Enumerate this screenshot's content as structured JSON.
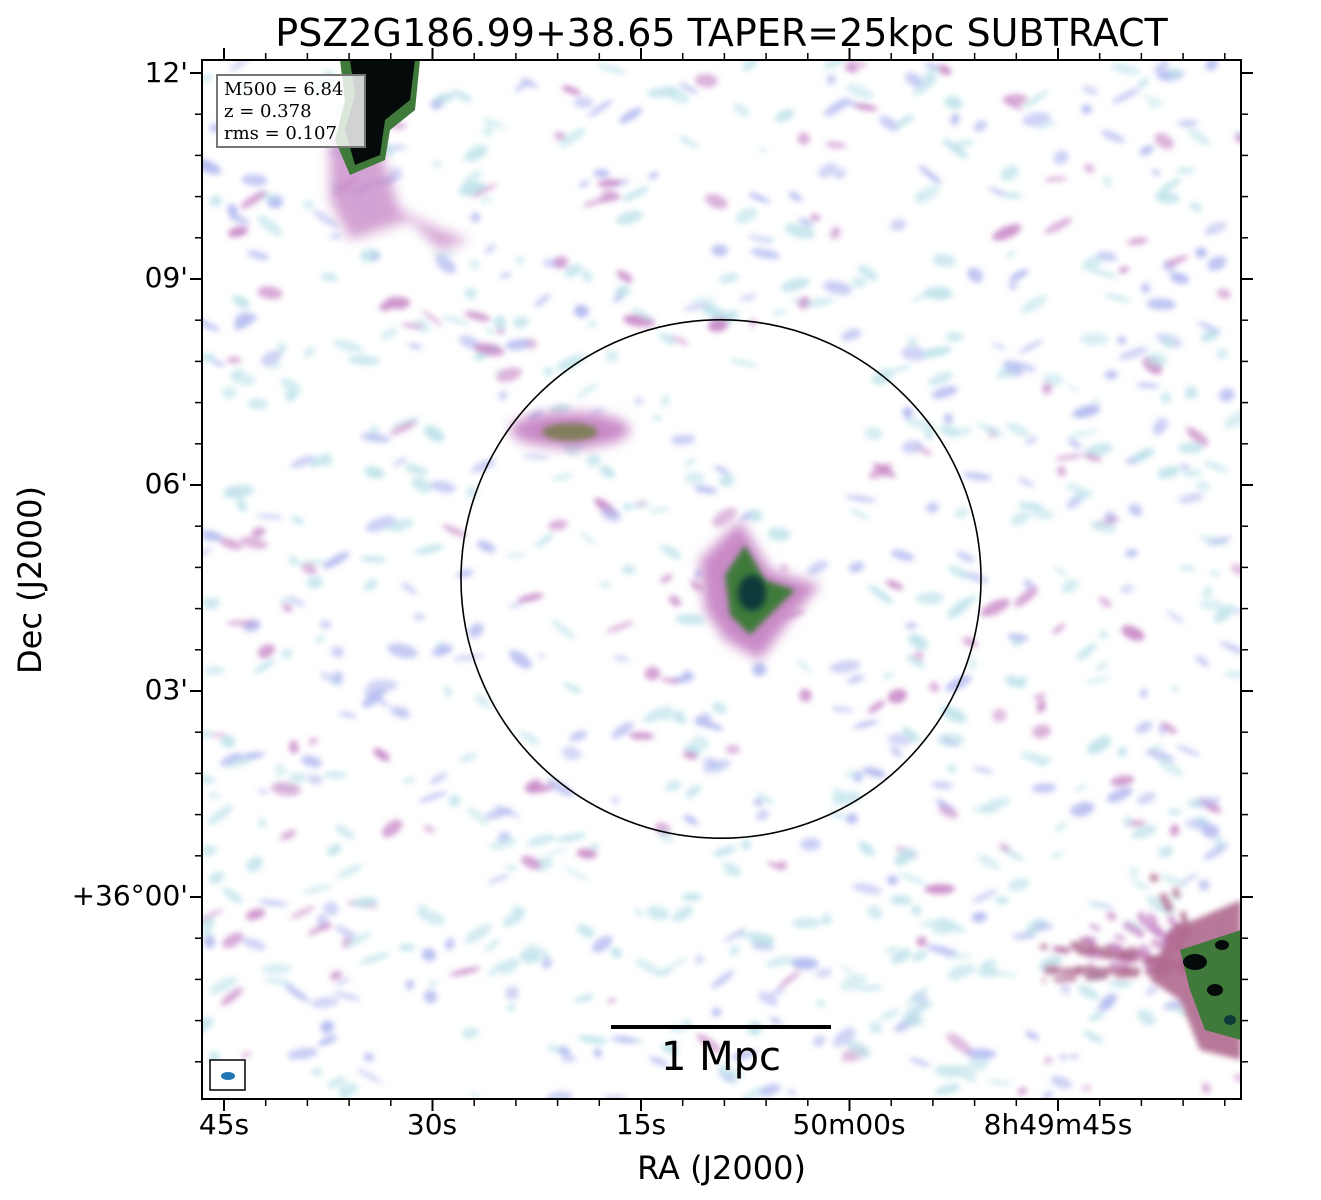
{
  "title": "PSZ2G186.99+38.65 TAPER=25kpc SUBTRACT",
  "axes": {
    "xlabel": "RA (J2000)",
    "ylabel": "Dec (J2000)",
    "xticks": [
      "45s",
      "30s",
      "15s",
      "50m00s",
      "8h49m45s"
    ],
    "yticks": [
      "12'",
      "09'",
      "06'",
      "03'",
      "+36°00'"
    ]
  },
  "info": {
    "mass": "M500 = 6.84",
    "redshift": "z = 0.378",
    "rms": "rms = 0.107"
  },
  "scalebar": {
    "label": "1 Mpc"
  },
  "colors": {
    "background": "#ffffff",
    "noise_light": "#bfe3ea",
    "noise_blue": "#b4baf0",
    "emission_pink": "#c98ac8",
    "emission_magenta": "#b06a8e",
    "emission_green": "#3f7a3a",
    "emission_dark": "#0f3a3a",
    "beam": "#1f77b4"
  }
}
